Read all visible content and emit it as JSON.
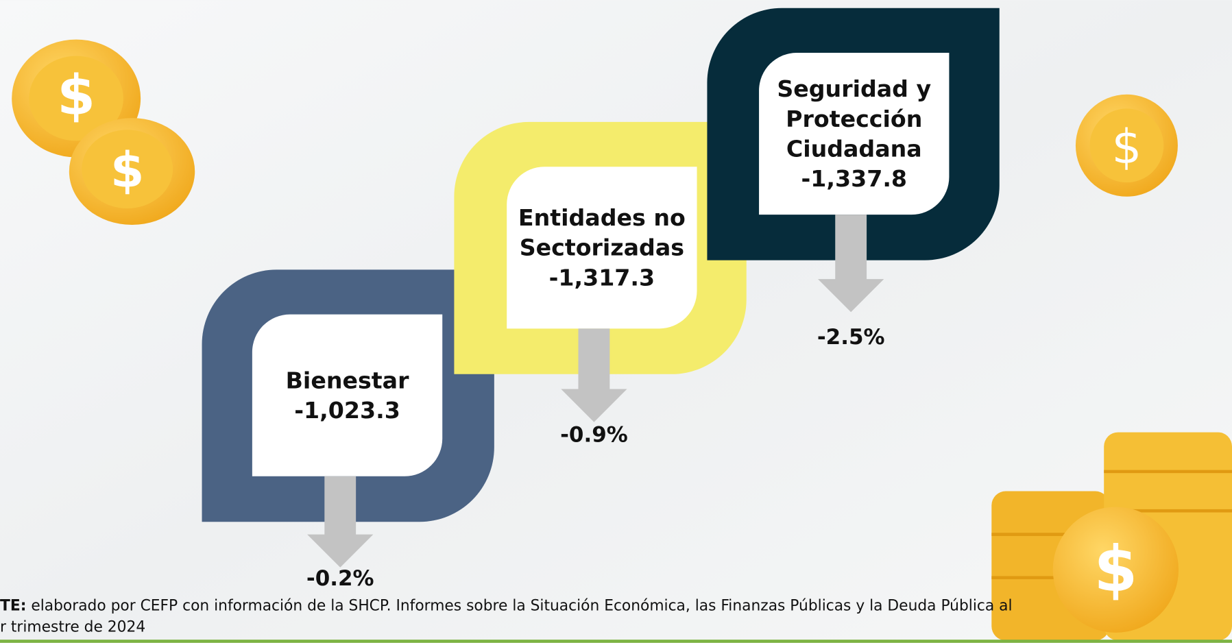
{
  "items": [
    {
      "label_lines": [
        "Bienestar"
      ],
      "value": "-1,023.3",
      "change": "-0.2%"
    },
    {
      "label_lines": [
        "Entidades no",
        "Sectorizadas"
      ],
      "value": "-1,317.3",
      "change": "-0.9%"
    },
    {
      "label_lines": [
        "Seguridad y",
        "Protección",
        "Ciudadana"
      ],
      "value": "-1,337.8",
      "change": "-2.5%"
    }
  ],
  "source": {
    "prefix": "TE:",
    "lines": [
      "elaborado por CEFP con información de la SHCP. Informes sobre la Situación Económica, las Finanzas Públicas y la Deuda Pública al",
      "r trimestre de 2024"
    ]
  }
}
